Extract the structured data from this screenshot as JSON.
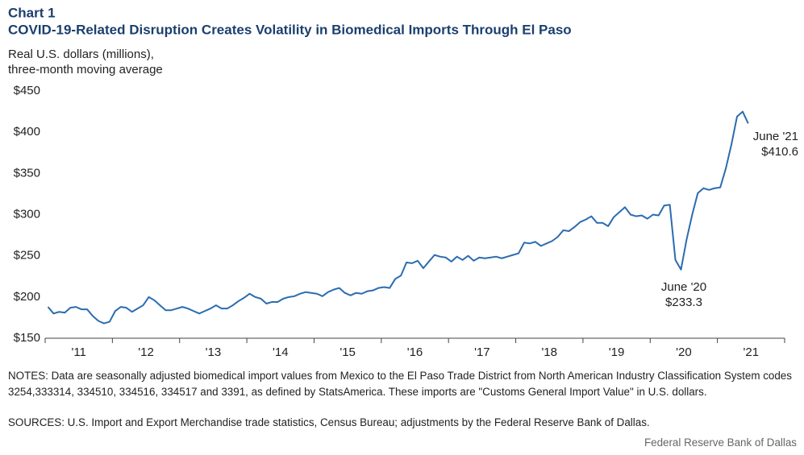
{
  "chart_data": {
    "type": "line",
    "title": "Chart 1",
    "subtitle": "COVID-19-Related Disruption Creates Volatility in Biomedical Imports Through El Paso",
    "ylabel": [
      "Real U.S. dollars (millions),",
      "three-month  moving average"
    ],
    "xlim": [
      2011,
      2022
    ],
    "xticks": [
      {
        "value": 2011.5,
        "label": "'11"
      },
      {
        "value": 2012.5,
        "label": "'12"
      },
      {
        "value": 2013.5,
        "label": "'13"
      },
      {
        "value": 2014.5,
        "label": "'14"
      },
      {
        "value": 2015.5,
        "label": "'15"
      },
      {
        "value": 2016.5,
        "label": "'16"
      },
      {
        "value": 2017.5,
        "label": "'17"
      },
      {
        "value": 2018.5,
        "label": "'18"
      },
      {
        "value": 2019.5,
        "label": "'19"
      },
      {
        "value": 2020.5,
        "label": "'20"
      },
      {
        "value": 2021.5,
        "label": "'21"
      }
    ],
    "ylim": [
      150,
      450
    ],
    "yticks": [
      {
        "value": 150,
        "label": "$150"
      },
      {
        "value": 200,
        "label": "$200"
      },
      {
        "value": 250,
        "label": "$250"
      },
      {
        "value": 300,
        "label": "$300"
      },
      {
        "value": 350,
        "label": "$350"
      },
      {
        "value": 400,
        "label": "$400"
      },
      {
        "value": 450,
        "label": "$450"
      }
    ],
    "grid": false,
    "x": [
      2011.042,
      2011.125,
      2011.208,
      2011.292,
      2011.375,
      2011.458,
      2011.542,
      2011.625,
      2011.708,
      2011.792,
      2011.875,
      2011.958,
      2012.042,
      2012.125,
      2012.208,
      2012.292,
      2012.375,
      2012.458,
      2012.542,
      2012.625,
      2012.708,
      2012.792,
      2012.875,
      2012.958,
      2013.042,
      2013.125,
      2013.208,
      2013.292,
      2013.375,
      2013.458,
      2013.542,
      2013.625,
      2013.708,
      2013.792,
      2013.875,
      2013.958,
      2014.042,
      2014.125,
      2014.208,
      2014.292,
      2014.375,
      2014.458,
      2014.542,
      2014.625,
      2014.708,
      2014.792,
      2014.875,
      2014.958,
      2015.042,
      2015.125,
      2015.208,
      2015.292,
      2015.375,
      2015.458,
      2015.542,
      2015.625,
      2015.708,
      2015.792,
      2015.875,
      2015.958,
      2016.042,
      2016.125,
      2016.208,
      2016.292,
      2016.375,
      2016.458,
      2016.542,
      2016.625,
      2016.708,
      2016.792,
      2016.875,
      2016.958,
      2017.042,
      2017.125,
      2017.208,
      2017.292,
      2017.375,
      2017.458,
      2017.542,
      2017.625,
      2017.708,
      2017.792,
      2017.875,
      2017.958,
      2018.042,
      2018.125,
      2018.208,
      2018.292,
      2018.375,
      2018.458,
      2018.542,
      2018.625,
      2018.708,
      2018.792,
      2018.875,
      2018.958,
      2019.042,
      2019.125,
      2019.208,
      2019.292,
      2019.375,
      2019.458,
      2019.542,
      2019.625,
      2019.708,
      2019.792,
      2019.875,
      2019.958,
      2020.042,
      2020.125,
      2020.208,
      2020.292,
      2020.375,
      2020.458,
      2020.542,
      2020.625,
      2020.708,
      2020.792,
      2020.875,
      2020.958,
      2021.042,
      2021.125,
      2021.208,
      2021.292,
      2021.375,
      2021.458
    ],
    "series": [
      {
        "name": "Biomedical imports",
        "color": "#2b6cb0",
        "values": [
          188,
          180,
          182,
          181,
          187,
          188,
          185,
          185,
          177,
          171,
          168,
          170,
          183,
          188,
          187,
          182,
          186,
          190,
          200,
          196,
          190,
          184,
          184,
          186,
          188,
          186,
          183,
          180,
          183,
          186,
          190,
          186,
          186,
          190,
          195,
          199,
          204,
          200,
          198,
          192,
          194,
          194,
          198,
          200,
          201,
          204,
          206,
          205,
          204,
          201,
          206,
          209,
          211,
          205,
          202,
          205,
          204,
          207,
          208,
          211,
          212,
          211,
          222,
          226,
          242,
          241,
          244,
          235,
          243,
          251,
          249,
          248,
          243,
          249,
          245,
          250,
          244,
          248,
          247,
          248,
          249,
          247,
          249,
          251,
          253,
          266,
          265,
          267,
          262,
          265,
          268,
          273,
          281,
          280,
          285,
          291,
          294,
          298,
          290,
          290,
          286,
          297,
          303,
          309,
          300,
          298,
          299,
          295,
          300,
          299,
          311,
          312,
          245,
          233.3,
          270,
          300,
          326,
          332,
          330,
          332,
          333,
          356,
          385,
          419,
          425,
          410.6
        ]
      }
    ],
    "annotations": [
      {
        "text": [
          "June '20",
          "$233.3"
        ]
      },
      {
        "text": [
          "June '21",
          "$410.6"
        ]
      }
    ],
    "notes": "NOTES: Data are seasonally adjusted biomedical import values from Mexico to the El Paso Trade District from North American Industry Classification System codes 3254,333314,  334510, 334516, 334517 and 3391, as defined by StatsAmerica. These imports are \"Customs General Import Value\" in U.S. dollars.",
    "sources": "SOURCES: U.S. Import and Export Merchandise trade statistics, Census Bureau; adjustments by the Federal Reserve Bank of Dallas.",
    "credit": "Federal Reserve Bank of Dallas"
  }
}
